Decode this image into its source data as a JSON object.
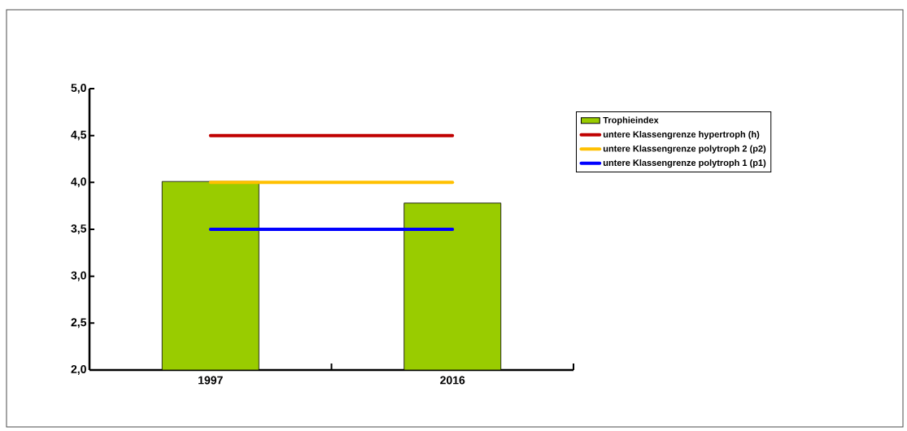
{
  "chart_data": {
    "type": "bar",
    "categories": [
      "1997",
      "2016"
    ],
    "series": [
      {
        "name": "Trophieindex",
        "color": "#99cc00",
        "values": [
          4.01,
          3.78
        ]
      },
      {
        "name": "untere Klassengrenze  hypertroph (h)",
        "type": "line",
        "color": "#c00000",
        "values": [
          4.5,
          4.5
        ]
      },
      {
        "name": "untere Klassengrenze  polytroph 2 (p2)",
        "type": "line",
        "color": "#ffc000",
        "values": [
          4.0,
          4.0
        ]
      },
      {
        "name": "untere Klassengrenze  polytroph 1 (p1)",
        "type": "line",
        "color": "#0000ff",
        "values": [
          3.5,
          3.5
        ]
      }
    ],
    "ylim": [
      2.0,
      5.0
    ],
    "yticks": [
      {
        "value": 2.0,
        "label": "2,0"
      },
      {
        "value": 2.5,
        "label": "2,5"
      },
      {
        "value": 3.0,
        "label": "3,0"
      },
      {
        "value": 3.5,
        "label": "3,5"
      },
      {
        "value": 4.0,
        "label": "4,0"
      },
      {
        "value": 4.5,
        "label": "4,5"
      },
      {
        "value": 5.0,
        "label": "5,0"
      }
    ],
    "grid": false,
    "legend": "right",
    "marker": "none",
    "line_style": "solid"
  }
}
